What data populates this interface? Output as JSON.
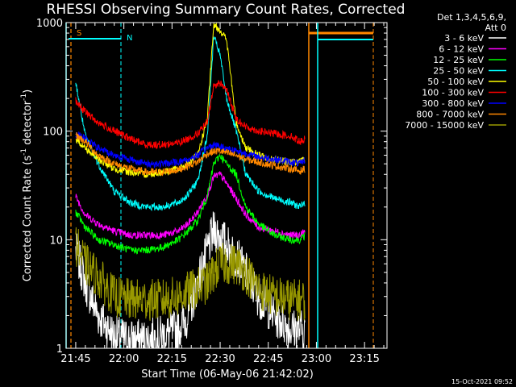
{
  "chart_data": {
    "type": "line",
    "title": "RHESSI Observing Summary Count Rates, Corrected",
    "xlabel": "Start Time (06-May-06 21:42:02)",
    "ylabel": "Corrected Count Rate (s⁻¹ detector⁻¹)",
    "ylabel_main": "Corrected Count Rate (s",
    "ylabel_sup1": "-1",
    "ylabel_mid": " detector",
    "ylabel_sup2": "-1",
    "ylabel_end": ")",
    "yscale": "log",
    "ylim": [
      1,
      1000
    ],
    "xlim": [
      "21:42:02",
      "23:22:02"
    ],
    "x_ticks": [
      "21:45",
      "22:00",
      "22:15",
      "22:30",
      "22:45",
      "23:00",
      "23:15"
    ],
    "y_ticks": [
      "1",
      "10",
      "100",
      "1000"
    ],
    "legend_header": [
      "Det 1,3,4,5,6,9,",
      "Att 0"
    ],
    "legend_position": "right",
    "footer": "15-Oct-2021 09:52",
    "x_sample_minutes": [
      3,
      6,
      10,
      15,
      20,
      25,
      30,
      35,
      38,
      41,
      44,
      46,
      48,
      50,
      53,
      56,
      60,
      65,
      70,
      73,
      74.5
    ],
    "series": [
      {
        "name": "3 - 6 keV",
        "color": "#ffffff",
        "values": [
          8,
          4,
          2,
          1.3,
          1.2,
          1.2,
          1.3,
          1.5,
          2,
          4,
          8,
          12,
          11,
          9,
          7,
          5,
          3,
          2,
          1.5,
          1.5,
          1.5
        ]
      },
      {
        "name": "6 - 12 keV",
        "color": "#ff00ff",
        "values": [
          25,
          17,
          14,
          12,
          11,
          11,
          11,
          12,
          14,
          18,
          26,
          38,
          40,
          33,
          24,
          17,
          13,
          12,
          11,
          11,
          12
        ]
      },
      {
        "name": "12 - 25 keV",
        "color": "#00ff00",
        "values": [
          18,
          13,
          10,
          9,
          8,
          8,
          8.5,
          10,
          12,
          15,
          25,
          50,
          60,
          50,
          40,
          20,
          14,
          11,
          10,
          10,
          11
        ]
      },
      {
        "name": "25 - 50 keV",
        "color": "#00ffff",
        "values": [
          280,
          90,
          50,
          28,
          22,
          20,
          20,
          22,
          26,
          35,
          90,
          750,
          500,
          200,
          100,
          40,
          28,
          24,
          22,
          20,
          22
        ]
      },
      {
        "name": "50 - 100 keV",
        "color": "#ffff00",
        "values": [
          85,
          70,
          55,
          45,
          42,
          40,
          42,
          45,
          50,
          60,
          130,
          950,
          850,
          700,
          120,
          70,
          60,
          55,
          52,
          52,
          55
        ]
      },
      {
        "name": "100 - 300 keV",
        "color": "#ff0000",
        "values": [
          190,
          150,
          120,
          100,
          85,
          75,
          75,
          78,
          85,
          95,
          120,
          260,
          280,
          240,
          130,
          110,
          100,
          95,
          90,
          80,
          85
        ]
      },
      {
        "name": "300 - 800 keV",
        "color": "#0000ff",
        "values": [
          95,
          85,
          70,
          60,
          55,
          50,
          50,
          52,
          55,
          60,
          70,
          75,
          72,
          70,
          66,
          62,
          58,
          55,
          52,
          50,
          55
        ]
      },
      {
        "name": "800 - 7000 keV",
        "color": "#ff8800",
        "values": [
          92,
          80,
          60,
          50,
          45,
          42,
          42,
          44,
          48,
          52,
          62,
          65,
          66,
          63,
          60,
          55,
          52,
          48,
          45,
          43,
          45
        ]
      },
      {
        "name": "7000 - 15000 keV",
        "color": "#999900",
        "values": [
          9,
          6,
          4.5,
          3,
          2.8,
          2.8,
          2.8,
          3,
          3.3,
          3.6,
          4,
          5,
          6,
          6,
          6,
          5,
          3.5,
          3,
          2.8,
          2.8,
          2.8
        ]
      }
    ],
    "annotations": [
      {
        "label": "S",
        "color": "#ff8800"
      },
      {
        "label": "N",
        "color": "#00ffff"
      }
    ]
  }
}
